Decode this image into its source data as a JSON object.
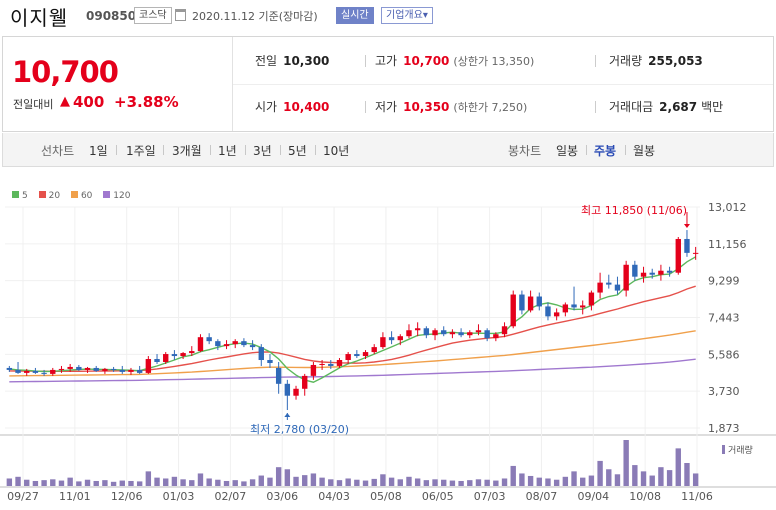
{
  "stock": {
    "name": "이지웰",
    "code": "090850",
    "market": "코스닥",
    "date_label": "2020.11.12 기준(장마감)",
    "realtime_label": "실시간",
    "company_label": "기업개요",
    "company_caret": "▾"
  },
  "price": {
    "current": "10,700",
    "change_label": "전일대비",
    "change_arrow": "▲",
    "change": "400",
    "change_pct": "+3.88%"
  },
  "stats": {
    "prev_close": {
      "label": "전일",
      "value": "10,300"
    },
    "high": {
      "label": "고가",
      "value": "10,700",
      "sub": "(상한가 13,350)"
    },
    "volume": {
      "label": "거래량",
      "value": "255,053"
    },
    "open": {
      "label": "시가",
      "value": "10,400"
    },
    "low": {
      "label": "저가",
      "value": "10,350",
      "sub": "(하한가 7,250)"
    },
    "amount": {
      "label": "거래대금",
      "value": "2,687",
      "unit": "백만"
    }
  },
  "period_bar": {
    "line_label": "선차트",
    "line_items": [
      "1일",
      "1주일",
      "3개월",
      "1년",
      "3년",
      "5년",
      "10년"
    ],
    "candle_label": "봉차트",
    "candle_items": [
      "일봉",
      "주봉",
      "월봉"
    ],
    "candle_active": "주봉"
  },
  "colors": {
    "up": "#e4001b",
    "down": "#2f69b8",
    "accent": "#6f82c8",
    "ma5": "#5cb85c",
    "ma20": "#e5514b",
    "ma60": "#f0a04b",
    "ma120": "#a078cf",
    "volume": "#8a7bb6"
  },
  "chart_data": {
    "type": "candlestick",
    "interval": "weekly",
    "legend": {
      "position": "top-left",
      "items": [
        {
          "label": "5",
          "color": "#5cb85c"
        },
        {
          "label": "20",
          "color": "#e5514b"
        },
        {
          "label": "60",
          "color": "#f0a04b"
        },
        {
          "label": "120",
          "color": "#a078cf"
        }
      ]
    },
    "y_ticks": [
      "13,012",
      "11,156",
      "9,299",
      "7,443",
      "5,586",
      "3,730",
      "1,873"
    ],
    "ylim": [
      1873,
      13012
    ],
    "x_ticks": [
      "09/27",
      "11/01",
      "12/06",
      "01/03",
      "02/07",
      "03/06",
      "04/03",
      "05/08",
      "06/05",
      "07/03",
      "08/07",
      "09/04",
      "10/08",
      "11/06"
    ],
    "annotations": {
      "high": {
        "text": "최고 11,850 (11/06)",
        "value": 11850
      },
      "low": {
        "text": "최저 2,780 (03/20)",
        "value": 2780
      }
    },
    "volume_label": "거래량",
    "candles": [
      [
        4900,
        5000,
        4700,
        4800
      ],
      [
        4800,
        5200,
        4600,
        4650
      ],
      [
        4650,
        4850,
        4500,
        4750
      ],
      [
        4750,
        4900,
        4600,
        4650
      ],
      [
        4650,
        4800,
        4500,
        4600
      ],
      [
        4600,
        4900,
        4500,
        4800
      ],
      [
        4800,
        5000,
        4650,
        4850
      ],
      [
        4850,
        5100,
        4700,
        4950
      ],
      [
        4950,
        5050,
        4750,
        4800
      ],
      [
        4800,
        4950,
        4650,
        4900
      ],
      [
        4900,
        5000,
        4700,
        4750
      ],
      [
        4750,
        4900,
        4600,
        4850
      ],
      [
        4850,
        4950,
        4700,
        4800
      ],
      [
        4800,
        5000,
        4600,
        4700
      ],
      [
        4700,
        4900,
        4550,
        4800
      ],
      [
        4800,
        5000,
        4600,
        4650
      ],
      [
        4650,
        5500,
        4600,
        5350
      ],
      [
        5350,
        5600,
        5100,
        5200
      ],
      [
        5200,
        5700,
        5100,
        5600
      ],
      [
        5600,
        5800,
        5300,
        5500
      ],
      [
        5500,
        5700,
        5350,
        5650
      ],
      [
        5650,
        6000,
        5500,
        5750
      ],
      [
        5750,
        6600,
        5700,
        6450
      ],
      [
        6450,
        6650,
        6100,
        6250
      ],
      [
        6250,
        6350,
        5800,
        6000
      ],
      [
        6000,
        6300,
        5850,
        6100
      ],
      [
        6100,
        6350,
        5900,
        6250
      ],
      [
        6250,
        6400,
        5950,
        6050
      ],
      [
        6050,
        6300,
        5800,
        5950
      ],
      [
        5950,
        6100,
        5000,
        5300
      ],
      [
        5300,
        5600,
        4900,
        5150
      ],
      [
        4900,
        5200,
        3600,
        4100
      ],
      [
        4100,
        4300,
        2780,
        3500
      ],
      [
        3500,
        4000,
        3300,
        3850
      ],
      [
        3850,
        4600,
        3500,
        4500
      ],
      [
        4500,
        5200,
        4300,
        5050
      ],
      [
        5050,
        5300,
        4800,
        5100
      ],
      [
        5100,
        5300,
        4850,
        5000
      ],
      [
        5000,
        5400,
        4900,
        5300
      ],
      [
        5300,
        5700,
        5100,
        5600
      ],
      [
        5600,
        5800,
        5400,
        5500
      ],
      [
        5500,
        5800,
        5350,
        5700
      ],
      [
        5700,
        6100,
        5600,
        5950
      ],
      [
        5950,
        6700,
        5850,
        6450
      ],
      [
        6450,
        6750,
        6100,
        6300
      ],
      [
        6300,
        6600,
        6050,
        6500
      ],
      [
        6500,
        7100,
        6400,
        6800
      ],
      [
        6800,
        7200,
        6500,
        6900
      ],
      [
        6900,
        7000,
        6400,
        6550
      ],
      [
        6550,
        6900,
        6300,
        6800
      ],
      [
        6800,
        7000,
        6500,
        6600
      ],
      [
        6600,
        6850,
        6400,
        6700
      ],
      [
        6700,
        6900,
        6450,
        6550
      ],
      [
        6550,
        6800,
        6400,
        6700
      ],
      [
        6700,
        7100,
        6550,
        6800
      ],
      [
        6800,
        6900,
        6250,
        6400
      ],
      [
        6400,
        6700,
        6250,
        6600
      ],
      [
        6600,
        7200,
        6450,
        7000
      ],
      [
        7000,
        8800,
        6900,
        8600
      ],
      [
        8600,
        8800,
        7600,
        7800
      ],
      [
        7800,
        8800,
        7700,
        8500
      ],
      [
        8500,
        8700,
        7800,
        8000
      ],
      [
        8000,
        8200,
        7300,
        7500
      ],
      [
        7500,
        7900,
        7300,
        7700
      ],
      [
        7700,
        8200,
        7500,
        8100
      ],
      [
        8100,
        9000,
        7800,
        7950
      ],
      [
        7950,
        8300,
        7600,
        8050
      ],
      [
        8050,
        8800,
        7800,
        8700
      ],
      [
        8700,
        9700,
        8400,
        9200
      ],
      [
        9200,
        9600,
        8900,
        9100
      ],
      [
        9100,
        9500,
        8600,
        8800
      ],
      [
        8800,
        10300,
        8500,
        10100
      ],
      [
        10100,
        10300,
        9300,
        9500
      ],
      [
        9500,
        10000,
        9200,
        9700
      ],
      [
        9700,
        9900,
        9400,
        9600
      ],
      [
        9600,
        10100,
        9300,
        9800
      ],
      [
        9800,
        10000,
        9500,
        9700
      ],
      [
        9700,
        11500,
        9600,
        11400
      ],
      [
        11400,
        11850,
        10500,
        10700
      ],
      [
        10700,
        11000,
        10350,
        10700
      ]
    ],
    "volumes": [
      18,
      22,
      15,
      12,
      14,
      16,
      13,
      20,
      11,
      15,
      12,
      14,
      10,
      13,
      12,
      11,
      35,
      20,
      18,
      22,
      16,
      14,
      30,
      18,
      15,
      12,
      14,
      11,
      16,
      25,
      20,
      45,
      40,
      22,
      26,
      30,
      20,
      16,
      14,
      18,
      15,
      13,
      17,
      28,
      20,
      16,
      22,
      18,
      14,
      16,
      15,
      13,
      12,
      14,
      16,
      15,
      13,
      18,
      48,
      30,
      24,
      20,
      18,
      15,
      22,
      35,
      20,
      25,
      60,
      40,
      28,
      110,
      50,
      35,
      25,
      45,
      38,
      90,
      55,
      30
    ],
    "ma5": [
      4850,
      4800,
      4780,
      4740,
      4720,
      4730,
      4760,
      4790,
      4820,
      4840,
      4830,
      4820,
      4810,
      4800,
      4780,
      4760,
      4880,
      5000,
      5150,
      5300,
      5460,
      5540,
      5720,
      5820,
      5940,
      6050,
      6120,
      6150,
      6100,
      5920,
      5710,
      5350,
      4870,
      4540,
      4290,
      4180,
      4400,
      4650,
      4900,
      5110,
      5250,
      5420,
      5600,
      5780,
      5960,
      6150,
      6350,
      6540,
      6590,
      6610,
      6660,
      6700,
      6650,
      6650,
      6650,
      6640,
      6640,
      6710,
      7170,
      7480,
      7900,
      8100,
      8180,
      8080,
      7920,
      7850,
      7860,
      8050,
      8350,
      8500,
      8580,
      9000,
      9300,
      9450,
      9500,
      9600,
      9630,
      9900,
      10250,
      10500
    ],
    "ma20": [
      4750,
      4745,
      4740,
      4738,
      4735,
      4733,
      4732,
      4732,
      4733,
      4735,
      4740,
      4745,
      4750,
      4755,
      4760,
      4765,
      4800,
      4850,
      4910,
      4980,
      5050,
      5120,
      5210,
      5300,
      5380,
      5450,
      5530,
      5610,
      5670,
      5700,
      5710,
      5650,
      5550,
      5440,
      5330,
      5250,
      5200,
      5180,
      5160,
      5150,
      5140,
      5160,
      5200,
      5260,
      5330,
      5430,
      5540,
      5680,
      5800,
      5920,
      6040,
      6150,
      6230,
      6300,
      6350,
      6400,
      6440,
      6490,
      6600,
      6720,
      6850,
      6970,
      7070,
      7160,
      7250,
      7340,
      7430,
      7530,
      7650,
      7760,
      7870,
      8000,
      8120,
      8240,
      8340,
      8440,
      8540,
      8700,
      8880,
      9020
    ],
    "ma60": [
      4500,
      4505,
      4510,
      4515,
      4520,
      4525,
      4530,
      4535,
      4540,
      4545,
      4550,
      4555,
      4560,
      4565,
      4570,
      4575,
      4590,
      4610,
      4630,
      4650,
      4670,
      4690,
      4720,
      4750,
      4780,
      4810,
      4840,
      4870,
      4900,
      4920,
      4935,
      4940,
      4930,
      4925,
      4920,
      4920,
      4930,
      4945,
      4960,
      4980,
      5000,
      5020,
      5045,
      5070,
      5100,
      5130,
      5160,
      5190,
      5220,
      5250,
      5285,
      5320,
      5355,
      5390,
      5425,
      5460,
      5495,
      5530,
      5580,
      5630,
      5680,
      5730,
      5780,
      5830,
      5880,
      5930,
      5980,
      6030,
      6085,
      6140,
      6195,
      6255,
      6315,
      6375,
      6435,
      6495,
      6555,
      6625,
      6700,
      6770
    ],
    "ma120": [
      4200,
      4205,
      4210,
      4215,
      4220,
      4225,
      4230,
      4235,
      4240,
      4245,
      4250,
      4255,
      4260,
      4265,
      4270,
      4275,
      4285,
      4295,
      4305,
      4315,
      4325,
      4335,
      4345,
      4355,
      4365,
      4375,
      4385,
      4395,
      4405,
      4415,
      4425,
      4435,
      4440,
      4445,
      4450,
      4455,
      4460,
      4470,
      4480,
      4490,
      4500,
      4510,
      4520,
      4530,
      4545,
      4560,
      4575,
      4590,
      4605,
      4620,
      4635,
      4650,
      4665,
      4680,
      4695,
      4710,
      4725,
      4740,
      4760,
      4780,
      4800,
      4820,
      4840,
      4860,
      4880,
      4900,
      4920,
      4940,
      4965,
      4990,
      5015,
      5040,
      5070,
      5100,
      5130,
      5160,
      5195,
      5240,
      5290,
      5340
    ]
  }
}
